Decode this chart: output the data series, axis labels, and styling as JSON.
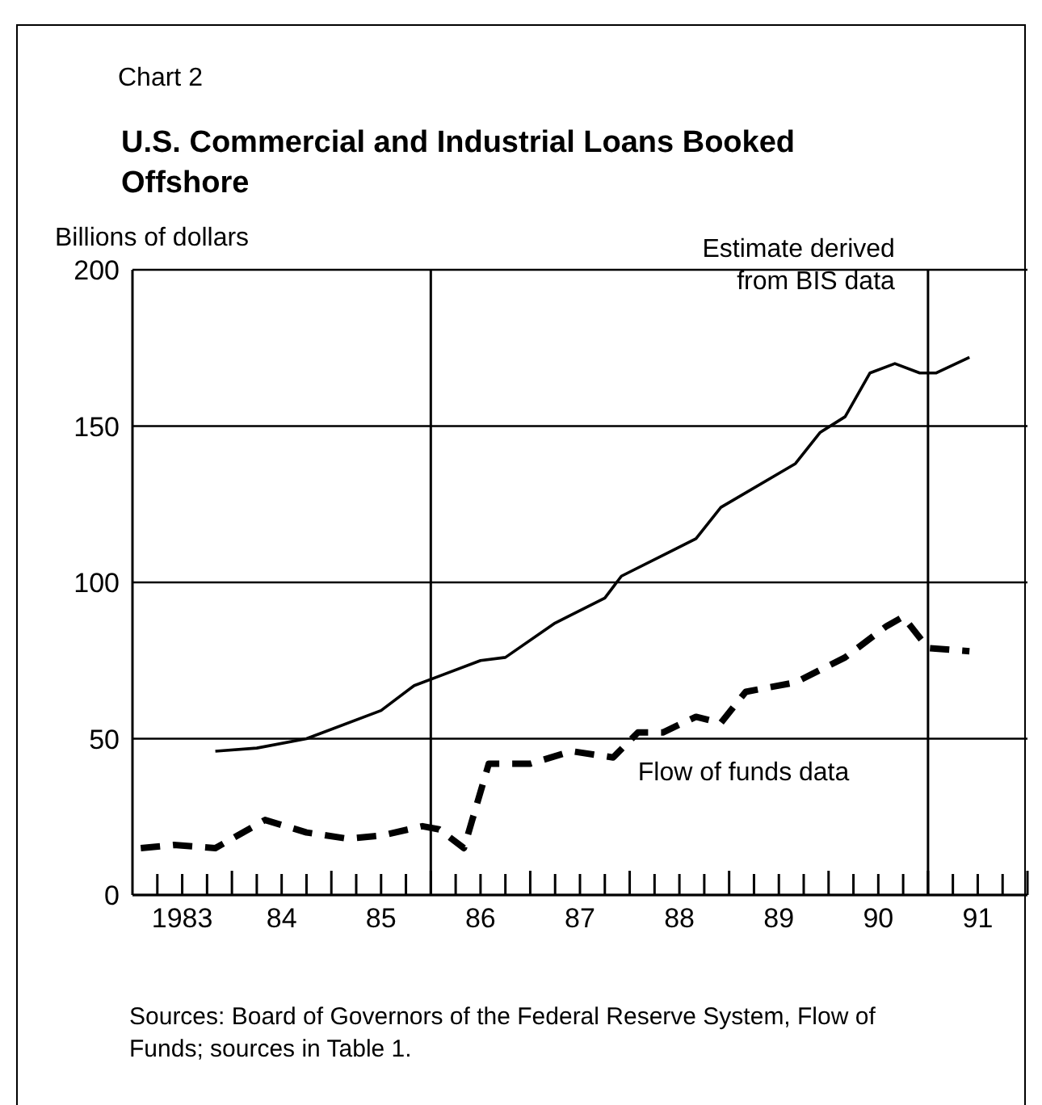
{
  "chart_data": {
    "type": "line",
    "subtitle": "Chart 2",
    "title": "U.S. Commercial and Industrial Loans Booked Offshore",
    "ylabel": "Billions of dollars",
    "annotations": [
      "Sources:  Board of Governors of the Federal Reserve System, Flow of Funds; sources in Table 1."
    ],
    "xlim": [
      "1983",
      "1992"
    ],
    "xticks": [
      {
        "value": "1983-04",
        "label": null
      },
      {
        "value": "1983-07",
        "label": "1983"
      },
      {
        "value": "1983-10",
        "label": null
      },
      {
        "value": "1984",
        "label": null
      },
      {
        "value": "1984-04",
        "label": null
      },
      {
        "value": "1984-07",
        "label": "84"
      },
      {
        "value": "1984-10",
        "label": null
      },
      {
        "value": "1985",
        "label": null
      },
      {
        "value": "1985-04",
        "label": null
      },
      {
        "value": "1985-07",
        "label": "85"
      },
      {
        "value": "1985-10",
        "label": null
      },
      {
        "value": "1986",
        "label": null
      },
      {
        "value": "1986-04",
        "label": null
      },
      {
        "value": "1986-07",
        "label": "86"
      },
      {
        "value": "1986-10",
        "label": null
      },
      {
        "value": "1987",
        "label": null
      },
      {
        "value": "1987-04",
        "label": null
      },
      {
        "value": "1987-07",
        "label": "87"
      },
      {
        "value": "1987-10",
        "label": null
      },
      {
        "value": "1988",
        "label": null
      },
      {
        "value": "1988-04",
        "label": null
      },
      {
        "value": "1988-07",
        "label": "88"
      },
      {
        "value": "1988-10",
        "label": null
      },
      {
        "value": "1989",
        "label": null
      },
      {
        "value": "1989-04",
        "label": null
      },
      {
        "value": "1989-07",
        "label": "89"
      },
      {
        "value": "1989-10",
        "label": null
      },
      {
        "value": "1990",
        "label": null
      },
      {
        "value": "1990-04",
        "label": null
      },
      {
        "value": "1990-07",
        "label": "90"
      },
      {
        "value": "1990-10",
        "label": null
      },
      {
        "value": "1991",
        "label": null
      },
      {
        "value": "1991-04",
        "label": null
      },
      {
        "value": "1991-07",
        "label": "91"
      },
      {
        "value": "1991-10",
        "label": null
      },
      {
        "value": "1992",
        "label": null
      }
    ],
    "ylim": [
      0,
      200
    ],
    "yticks": [
      0,
      50,
      100,
      150,
      200
    ],
    "grid": "y",
    "legend": false,
    "marker": "none",
    "ref_lines": [
      {
        "axis": "x",
        "value": "1986",
        "label": null,
        "color": "#000000"
      },
      {
        "axis": "x",
        "value": "1991",
        "label": null,
        "color": "#000000"
      }
    ],
    "series": [
      {
        "name": "Estimate derived from BIS data",
        "color": "#000000",
        "line_style": "solid",
        "x": [
          "1983-11",
          "1984-04",
          "1984-10",
          "1985-07",
          "1985-11",
          "1986-02",
          "1986-07",
          "1986-10",
          "1987-04",
          "1987-10",
          "1987-12",
          "1988-06",
          "1988-09",
          "1988-12",
          "1989-09",
          "1989-12",
          "1990-03",
          "1990-06",
          "1990-09",
          "1990-12",
          "1991-02",
          "1991-06"
        ],
        "values": [
          46,
          47,
          50,
          59,
          67,
          70,
          75,
          76,
          87,
          95,
          102,
          110,
          114,
          124,
          138,
          148,
          153,
          167,
          170,
          167,
          167,
          172
        ]
      },
      {
        "name": "Flow of funds data",
        "color": "#000000",
        "line_style": "dashed",
        "x": [
          "1983-02",
          "1983-06",
          "1983-11",
          "1984-05",
          "1984-10",
          "1985-03",
          "1985-07",
          "1985-12",
          "1986-02",
          "1986-05",
          "1986-08",
          "1987-01",
          "1987-06",
          "1987-11",
          "1988-02",
          "1988-05",
          "1988-09",
          "1988-12",
          "1989-03",
          "1989-09",
          "1990-03",
          "1990-08",
          "1990-10",
          "1991-01",
          "1991-06"
        ],
        "values": [
          15,
          16,
          15,
          24,
          20,
          18,
          19,
          22,
          21,
          15,
          42,
          42,
          46,
          44,
          52,
          52,
          57,
          55,
          65,
          68,
          76,
          86,
          89,
          79,
          78
        ]
      }
    ]
  }
}
